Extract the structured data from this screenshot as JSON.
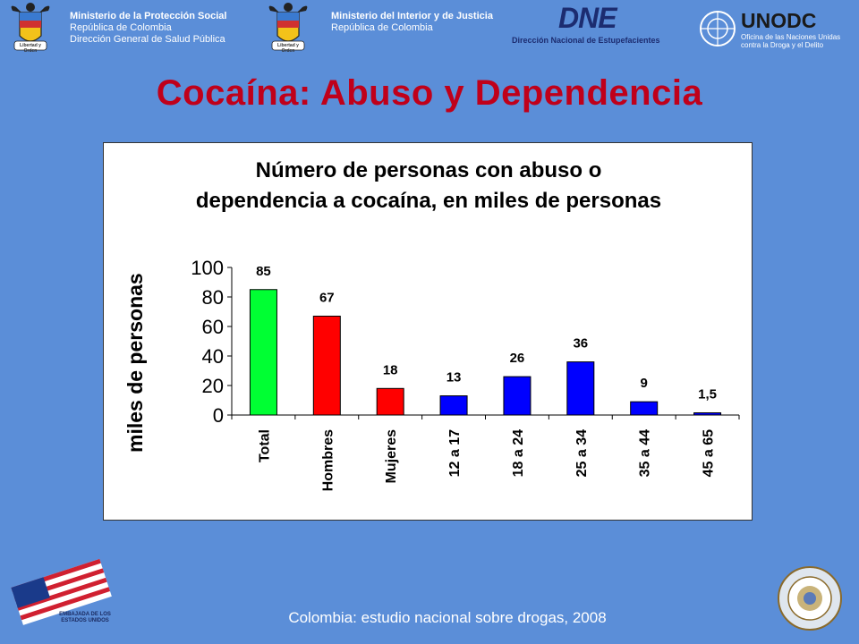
{
  "header": {
    "left_block": {
      "line1": "Ministerio de la Protección Social",
      "line2": "República de Colombia",
      "line3": "Dirección General de Salud Pública"
    },
    "mid_block": {
      "line1": "Ministerio del Interior y de Justicia",
      "line2": "República de Colombia"
    },
    "crest_caption": "Libertad y Orden",
    "dne": {
      "logo": "DNE",
      "subtitle": "Dirección Nacional de Estupefacientes"
    },
    "unodc": {
      "logo": "UNODC",
      "line1": "Oficina de las Naciones Unidas",
      "line2": "contra la Droga y el Delito"
    }
  },
  "page_title": "Cocaína: Abuso y Dependencia",
  "footer": {
    "source": "Colombia: estudio nacional sobre drogas, 2008",
    "embassy_text": "EMBAJADA DE LOS ESTADOS UNIDOS"
  },
  "colors": {
    "background": "#5b8ed8",
    "title": "#c0001a",
    "green": "#00ff33",
    "red": "#ff0000",
    "blue": "#0000ff"
  },
  "chart_data": {
    "type": "bar",
    "title_line1": "Número de personas con abuso o",
    "title_line2": "dependencia a cocaína, en miles de personas",
    "xlabel": "",
    "ylabel": "miles de personas",
    "ylim": [
      0,
      100
    ],
    "yticks": [
      0,
      20,
      40,
      60,
      80,
      100
    ],
    "grid": false,
    "legend": "none",
    "categories": [
      "Total",
      "Hombres",
      "Mujeres",
      "12 a 17",
      "18 a 24",
      "25 a 34",
      "35 a 44",
      "45 a 65"
    ],
    "values": [
      85,
      67,
      18,
      13,
      26,
      36,
      9,
      1.5
    ],
    "data_labels": [
      "85",
      "67",
      "18",
      "13",
      "26",
      "36",
      "9",
      "1,5"
    ],
    "bar_colors": [
      "#00ff33",
      "#ff0000",
      "#ff0000",
      "#0000ff",
      "#0000ff",
      "#0000ff",
      "#0000ff",
      "#0000ff"
    ]
  }
}
